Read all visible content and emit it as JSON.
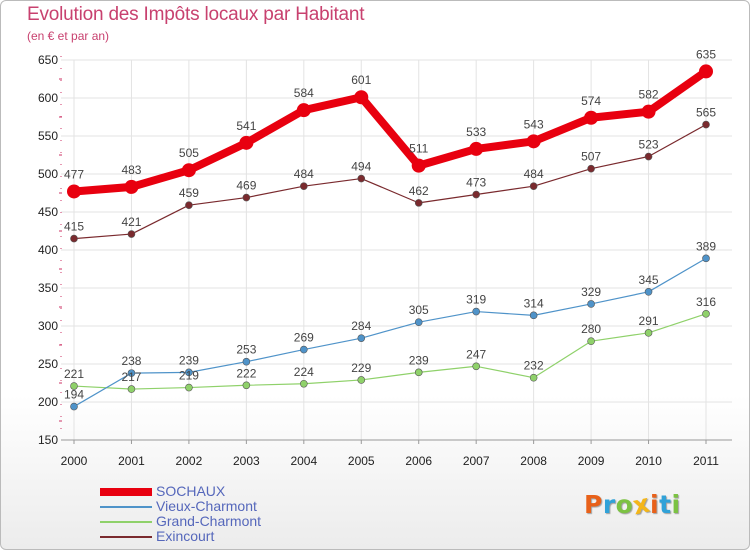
{
  "title": "Evolution des Impôts locaux par Habitant",
  "subtitle": "(en € et par an)",
  "logo": {
    "letters": [
      {
        "char": "P",
        "color": "#e8611a"
      },
      {
        "char": "r",
        "color": "#31a2d8"
      },
      {
        "char": "o",
        "color": "#7cc243"
      },
      {
        "char": "x",
        "color": "#f4b619"
      },
      {
        "char": "i",
        "color": "#e8611a"
      },
      {
        "char": "t",
        "color": "#31a2d8"
      },
      {
        "char": "i",
        "color": "#7cc243"
      }
    ]
  },
  "chart_data": {
    "type": "line",
    "title": "Evolution des Impôts locaux par Habitant",
    "subtitle": "(en € et par an)",
    "categories": [
      "2000",
      "2001",
      "2002",
      "2003",
      "2004",
      "2005",
      "2006",
      "2007",
      "2008",
      "2009",
      "2010",
      "2011"
    ],
    "ylim": [
      150,
      650
    ],
    "yticks": [
      150,
      200,
      250,
      300,
      350,
      400,
      450,
      500,
      550,
      600,
      650
    ],
    "grid": true,
    "legend_position": "bottom-left",
    "series": [
      {
        "name": "SOCHAUX",
        "color": "#e8000f",
        "values": [
          477,
          483,
          505,
          541,
          584,
          601,
          511,
          533,
          543,
          574,
          582,
          635
        ]
      },
      {
        "name": "Vieux-Charmont",
        "color": "#4f93c9",
        "values": [
          194,
          238,
          239,
          253,
          269,
          284,
          305,
          319,
          314,
          329,
          345,
          389
        ]
      },
      {
        "name": "Grand-Charmont",
        "color": "#8fd16a",
        "values": [
          221,
          217,
          219,
          222,
          224,
          229,
          239,
          247,
          232,
          280,
          291,
          316
        ]
      },
      {
        "name": "Exincourt",
        "color": "#7a2a2e",
        "values": [
          415,
          421,
          459,
          469,
          484,
          494,
          462,
          473,
          484,
          507,
          523,
          565
        ]
      }
    ]
  }
}
